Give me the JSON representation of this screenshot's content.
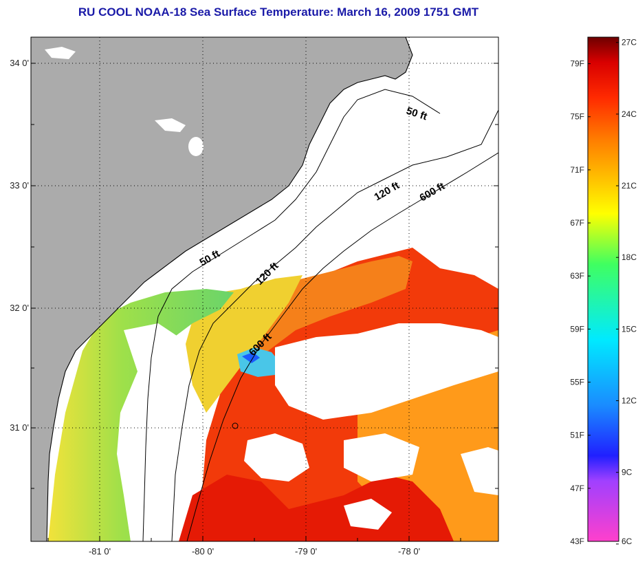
{
  "title": "RU COOL  NOAA-18  Sea Surface Temperature:  March 16, 2009 1751 GMT",
  "map": {
    "lat_ticks": [
      "34 0'",
      "33 0'",
      "32 0'",
      "31 0'"
    ],
    "lon_ticks": [
      "-81 0'",
      "-80 0'",
      "-79 0'",
      "-78 0'"
    ],
    "isobaths": [
      "50 ft",
      "120 ft",
      "600 ft",
      "50 ft",
      "120 ft",
      "600 ft"
    ],
    "colors": {
      "land": "#ababab",
      "cloud": "#ffffff",
      "grid": "#000000"
    }
  },
  "colorbar": {
    "fahrenheit": [
      "79F",
      "75F",
      "71F",
      "67F",
      "63F",
      "59F",
      "55F",
      "51F",
      "47F",
      "43F"
    ],
    "celsius": [
      "27C",
      "24C",
      "21C",
      "18C",
      "15C",
      "12C",
      "9C",
      "6C"
    ],
    "range_f": [
      43,
      81
    ],
    "range_c": [
      6,
      27
    ]
  }
}
